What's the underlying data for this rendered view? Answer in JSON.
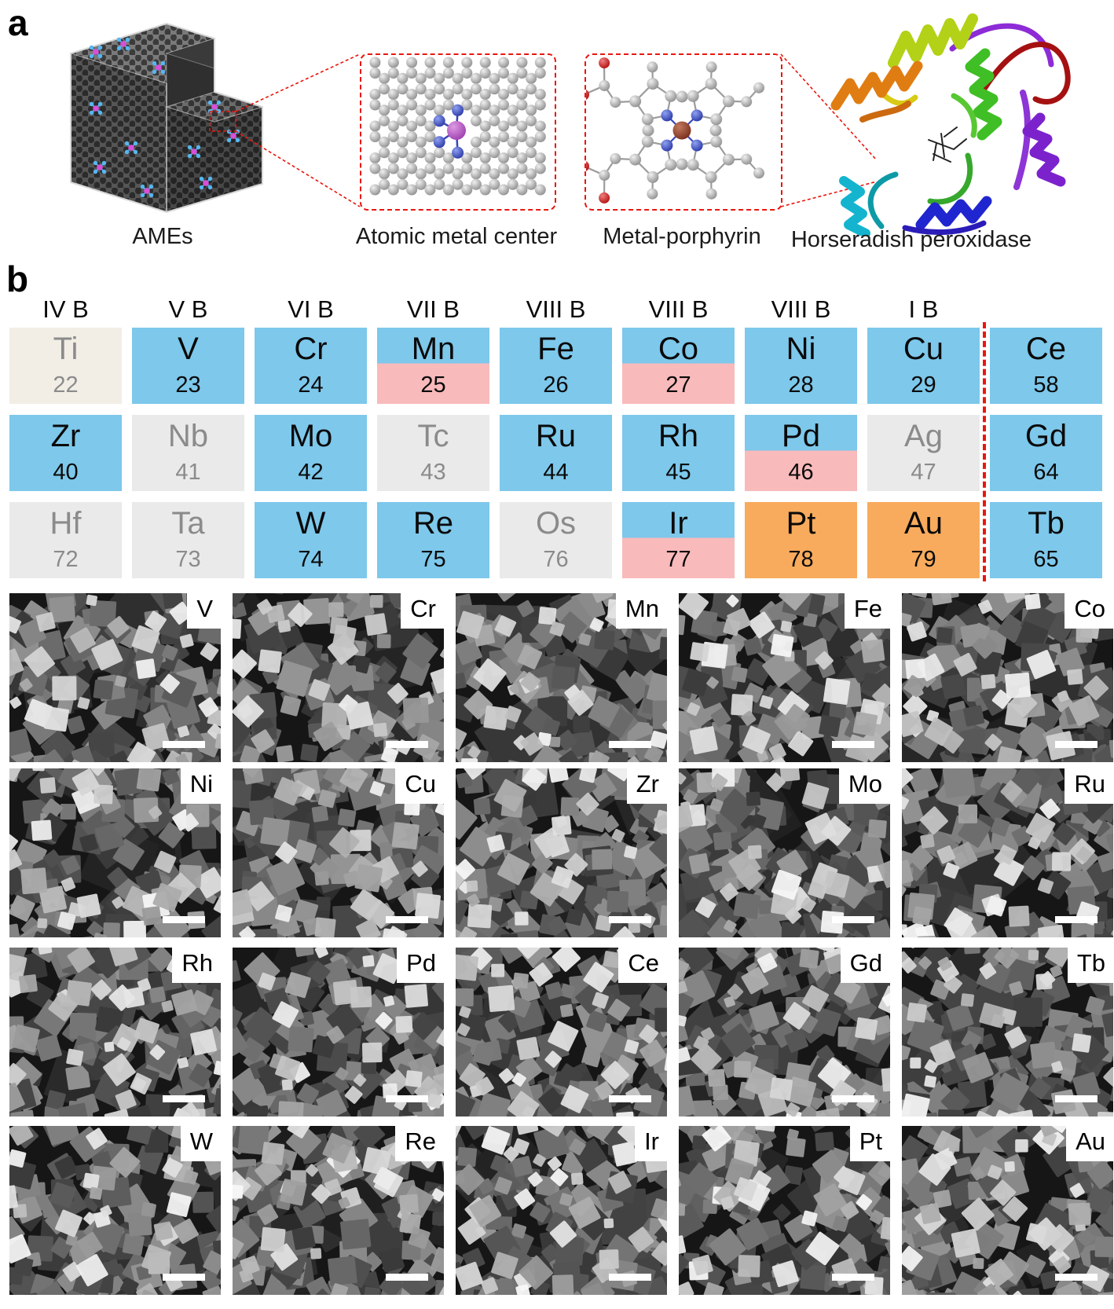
{
  "figure": {
    "panel_a_letter": "a",
    "panel_b_letter": "b"
  },
  "panel_a": {
    "captions": {
      "ames": "AMEs",
      "atomic_metal_center": "Atomic metal center",
      "metal_porphyrin": "Metal-porphyrin",
      "horseradish_peroxidase": "Horseradish peroxidase"
    }
  },
  "panel_b": {
    "group_headers": [
      "IV B",
      "V B",
      "VI B",
      "VII B",
      "VIII B",
      "VIII B",
      "VIII B",
      "I B"
    ],
    "colors": {
      "element_blue": "#7dc8eb",
      "element_pink": "#f9babb",
      "element_orange": "#f8ab5c",
      "inactive_gray_bg": "#eaeaea",
      "ti_beige": "#f2eee6",
      "inactive_text": "#8b8b8b",
      "accent_red": "#e8170f"
    },
    "cells": [
      {
        "symbol": "Ti",
        "number": "22",
        "style": "beige",
        "inactive": true
      },
      {
        "symbol": "V",
        "number": "23",
        "style": "blue"
      },
      {
        "symbol": "Cr",
        "number": "24",
        "style": "blue"
      },
      {
        "symbol": "Mn",
        "number": "25",
        "style": "split"
      },
      {
        "symbol": "Fe",
        "number": "26",
        "style": "blue"
      },
      {
        "symbol": "Co",
        "number": "27",
        "style": "split"
      },
      {
        "symbol": "Ni",
        "number": "28",
        "style": "blue"
      },
      {
        "symbol": "Cu",
        "number": "29",
        "style": "blue"
      },
      {
        "symbol": "Ce",
        "number": "58",
        "style": "blue"
      },
      {
        "symbol": "Zr",
        "number": "40",
        "style": "blue"
      },
      {
        "symbol": "Nb",
        "number": "41",
        "style": "gray",
        "inactive": true
      },
      {
        "symbol": "Mo",
        "number": "42",
        "style": "blue"
      },
      {
        "symbol": "Tc",
        "number": "43",
        "style": "gray",
        "inactive": true
      },
      {
        "symbol": "Ru",
        "number": "44",
        "style": "blue"
      },
      {
        "symbol": "Rh",
        "number": "45",
        "style": "blue"
      },
      {
        "symbol": "Pd",
        "number": "46",
        "style": "split"
      },
      {
        "symbol": "Ag",
        "number": "47",
        "style": "gray",
        "inactive": true
      },
      {
        "symbol": "Gd",
        "number": "64",
        "style": "blue"
      },
      {
        "symbol": "Hf",
        "number": "72",
        "style": "gray",
        "inactive": true
      },
      {
        "symbol": "Ta",
        "number": "73",
        "style": "gray",
        "inactive": true
      },
      {
        "symbol": "W",
        "number": "74",
        "style": "blue"
      },
      {
        "symbol": "Re",
        "number": "75",
        "style": "blue"
      },
      {
        "symbol": "Os",
        "number": "76",
        "style": "gray",
        "inactive": true
      },
      {
        "symbol": "Ir",
        "number": "77",
        "style": "split"
      },
      {
        "symbol": "Pt",
        "number": "78",
        "style": "orange"
      },
      {
        "symbol": "Au",
        "number": "79",
        "style": "orange"
      },
      {
        "symbol": "Tb",
        "number": "65",
        "style": "blue"
      }
    ]
  },
  "sem_grid": {
    "labels": [
      "V",
      "Cr",
      "Mn",
      "Fe",
      "Co",
      "Ni",
      "Cu",
      "Zr",
      "Mo",
      "Ru",
      "Rh",
      "Pd",
      "Ce",
      "Gd",
      "Tb",
      "W",
      "Re",
      "Ir",
      "Pt",
      "Au"
    ]
  }
}
